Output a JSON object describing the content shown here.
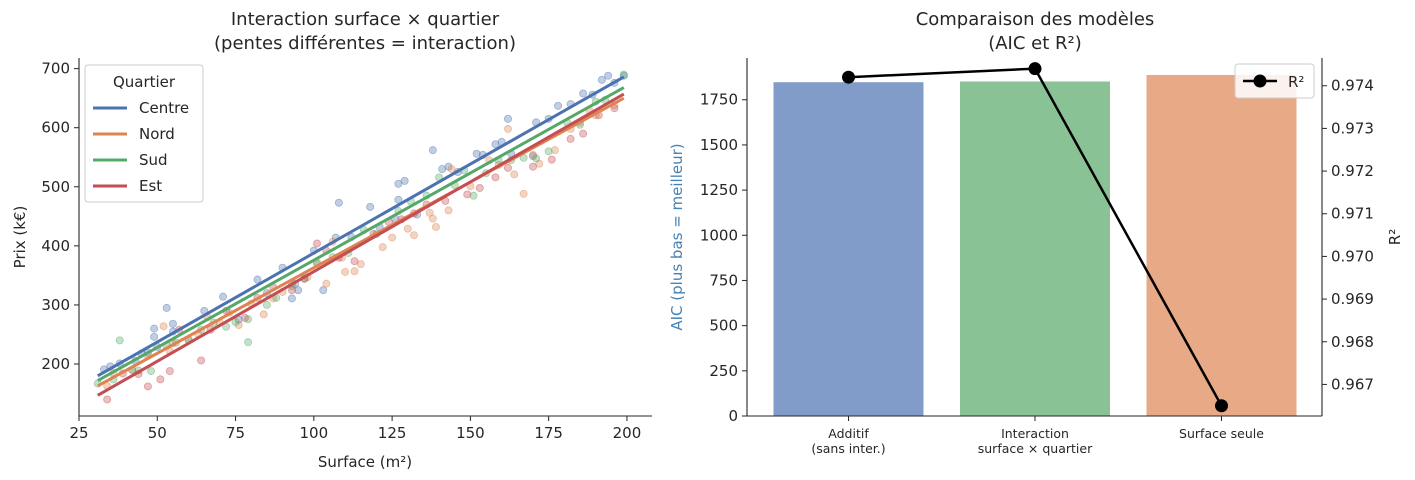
{
  "chart_data": [
    {
      "type": "scatter",
      "title": "Interaction surface × quartier\n(pentes différentes = interaction)",
      "xlabel": "Surface (m²)",
      "ylabel": "Prix (k€)",
      "xlim": [
        25,
        208
      ],
      "ylim": [
        112,
        718
      ],
      "xticks": [
        25,
        50,
        75,
        100,
        125,
        150,
        175,
        200
      ],
      "yticks": [
        200,
        300,
        400,
        500,
        600,
        700
      ],
      "legend_title": "Quartier",
      "legend_position": "upper-left",
      "series": [
        {
          "name": "Centre",
          "color": "#4c72b0",
          "line": [
            [
              31,
              180
            ],
            [
              199,
              686
            ]
          ],
          "points": [
            [
              33,
              191
            ],
            [
              35,
              196
            ],
            [
              38,
              201
            ],
            [
              43,
              205
            ],
            [
              45,
              218
            ],
            [
              47,
              219
            ],
            [
              49,
              246
            ],
            [
              49,
              260
            ],
            [
              50,
              229
            ],
            [
              53,
              295
            ],
            [
              55,
              255
            ],
            [
              55,
              268
            ],
            [
              65,
              290
            ],
            [
              71,
              314
            ],
            [
              76,
              275
            ],
            [
              82,
              343
            ],
            [
              85,
              320
            ],
            [
              90,
              363
            ],
            [
              93,
              311
            ],
            [
              94,
              336
            ],
            [
              95,
              325
            ],
            [
              100,
              392
            ],
            [
              103,
              325
            ],
            [
              107,
              414
            ],
            [
              108,
              473
            ],
            [
              112,
              415
            ],
            [
              118,
              466
            ],
            [
              121,
              432
            ],
            [
              126,
              446
            ],
            [
              127,
              505
            ],
            [
              127,
              478
            ],
            [
              129,
              510
            ],
            [
              133,
              453
            ],
            [
              138,
              562
            ],
            [
              141,
              530
            ],
            [
              143,
              534
            ],
            [
              146,
              525
            ],
            [
              152,
              556
            ],
            [
              154,
              554
            ],
            [
              158,
              572
            ],
            [
              160,
              576
            ],
            [
              162,
              615
            ],
            [
              163,
              556
            ],
            [
              170,
              552
            ],
            [
              171,
              609
            ],
            [
              175,
              615
            ],
            [
              178,
              637
            ],
            [
              182,
              640
            ],
            [
              186,
              658
            ],
            [
              189,
              656
            ],
            [
              192,
              681
            ],
            [
              194,
              688
            ],
            [
              196,
              676
            ],
            [
              199,
              688
            ]
          ]
        },
        {
          "name": "Nord",
          "color": "#dd8452",
          "line": [
            [
              31,
              163
            ],
            [
              199,
              650
            ]
          ],
          "points": [
            [
              34,
              163
            ],
            [
              36,
              185
            ],
            [
              42,
              190
            ],
            [
              47,
              214
            ],
            [
              52,
              264
            ],
            [
              54,
              222
            ],
            [
              55,
              235
            ],
            [
              60,
              242
            ],
            [
              63,
              251
            ],
            [
              66,
              279
            ],
            [
              70,
              270
            ],
            [
              73,
              287
            ],
            [
              76,
              266
            ],
            [
              80,
              302
            ],
            [
              84,
              284
            ],
            [
              87,
              311
            ],
            [
              90,
              322
            ],
            [
              93,
              336
            ],
            [
              98,
              347
            ],
            [
              101,
              372
            ],
            [
              104,
              336
            ],
            [
              106,
              407
            ],
            [
              109,
              380
            ],
            [
              110,
              356
            ],
            [
              113,
              357
            ],
            [
              115,
              369
            ],
            [
              122,
              398
            ],
            [
              125,
              414
            ],
            [
              130,
              429
            ],
            [
              132,
              418
            ],
            [
              137,
              456
            ],
            [
              138,
              446
            ],
            [
              139,
              432
            ],
            [
              143,
              460
            ],
            [
              144,
              530
            ],
            [
              150,
              501
            ],
            [
              156,
              545
            ],
            [
              159,
              537
            ],
            [
              162,
              598
            ],
            [
              164,
              521
            ],
            [
              167,
              488
            ],
            [
              170,
              554
            ],
            [
              172,
              539
            ],
            [
              177,
              562
            ],
            [
              182,
              598
            ],
            [
              185,
              609
            ],
            [
              188,
              629
            ],
            [
              190,
              621
            ],
            [
              196,
              638
            ]
          ]
        },
        {
          "name": "Sud",
          "color": "#55a868",
          "line": [
            [
              31,
              172
            ],
            [
              199,
              668
            ]
          ],
          "points": [
            [
              31,
              167
            ],
            [
              36,
              174
            ],
            [
              38,
              240
            ],
            [
              42,
              190
            ],
            [
              44,
              189
            ],
            [
              48,
              188
            ],
            [
              53,
              231
            ],
            [
              56,
              236
            ],
            [
              60,
              240
            ],
            [
              64,
              258
            ],
            [
              68,
              270
            ],
            [
              72,
              263
            ],
            [
              75,
              271
            ],
            [
              79,
              237
            ],
            [
              79,
              276
            ],
            [
              85,
              300
            ],
            [
              88,
              312
            ],
            [
              93,
              332
            ],
            [
              97,
              345
            ],
            [
              101,
              370
            ],
            [
              106,
              381
            ],
            [
              111,
              388
            ],
            [
              116,
              427
            ],
            [
              120,
              420
            ],
            [
              127,
              459
            ],
            [
              131,
              475
            ],
            [
              136,
              485
            ],
            [
              140,
              516
            ],
            [
              145,
              503
            ],
            [
              148,
              528
            ],
            [
              151,
              485
            ],
            [
              155,
              523
            ],
            [
              159,
              545
            ],
            [
              163,
              545
            ],
            [
              167,
              549
            ],
            [
              171,
              548
            ],
            [
              175,
              560
            ],
            [
              181,
              608
            ],
            [
              185,
              605
            ],
            [
              190,
              644
            ],
            [
              193,
              647
            ],
            [
              199,
              690
            ]
          ]
        },
        {
          "name": "Est",
          "color": "#c44e52",
          "line": [
            [
              31,
              147
            ],
            [
              199,
              657
            ]
          ],
          "points": [
            [
              34,
              140
            ],
            [
              39,
              184
            ],
            [
              44,
              183
            ],
            [
              47,
              162
            ],
            [
              51,
              174
            ],
            [
              54,
              188
            ],
            [
              57,
              258
            ],
            [
              64,
              206
            ],
            [
              67,
              258
            ],
            [
              72,
              290
            ],
            [
              78,
              278
            ],
            [
              82,
              312
            ],
            [
              87,
              330
            ],
            [
              93,
              325
            ],
            [
              97,
              344
            ],
            [
              101,
              404
            ],
            [
              104,
              392
            ],
            [
              108,
              380
            ],
            [
              113,
              374
            ],
            [
              119,
              420
            ],
            [
              124,
              440
            ],
            [
              128,
              445
            ],
            [
              132,
              455
            ],
            [
              136,
              470
            ],
            [
              142,
              476
            ],
            [
              149,
              487
            ],
            [
              153,
              498
            ],
            [
              158,
              516
            ],
            [
              162,
              532
            ],
            [
              170,
              534
            ],
            [
              176,
              546
            ],
            [
              182,
              581
            ],
            [
              186,
              590
            ],
            [
              191,
              621
            ],
            [
              196,
              633
            ]
          ]
        }
      ]
    },
    {
      "type": "bar",
      "title": "Comparaison des modèles\n(AIC et R²)",
      "categories": [
        "Additif\n(sans inter.)",
        "Interaction\nsurface × quartier",
        "Surface seule"
      ],
      "values": [
        1847,
        1851,
        1887
      ],
      "bar_colors": [
        "#4c72b0",
        "#55a868",
        "#dd8452"
      ],
      "ylabel": "AIC (plus bas = meilleur)",
      "ylabel_color": "#4682b4",
      "ylim": [
        0,
        1981
      ],
      "yticks": [
        0,
        250,
        500,
        750,
        1000,
        1250,
        1500,
        1750
      ],
      "secondary": {
        "type": "line",
        "name": "R²",
        "ylabel": "R²",
        "values": [
          0.9742,
          0.9744,
          0.9665
        ],
        "ylim": [
          0.96626,
          0.97465
        ],
        "yticks": [
          "0.967",
          "0.968",
          "0.969",
          "0.970",
          "0.971",
          "0.972",
          "0.973",
          "0.974"
        ],
        "color": "#000000"
      },
      "legend_position": "upper-right"
    }
  ]
}
